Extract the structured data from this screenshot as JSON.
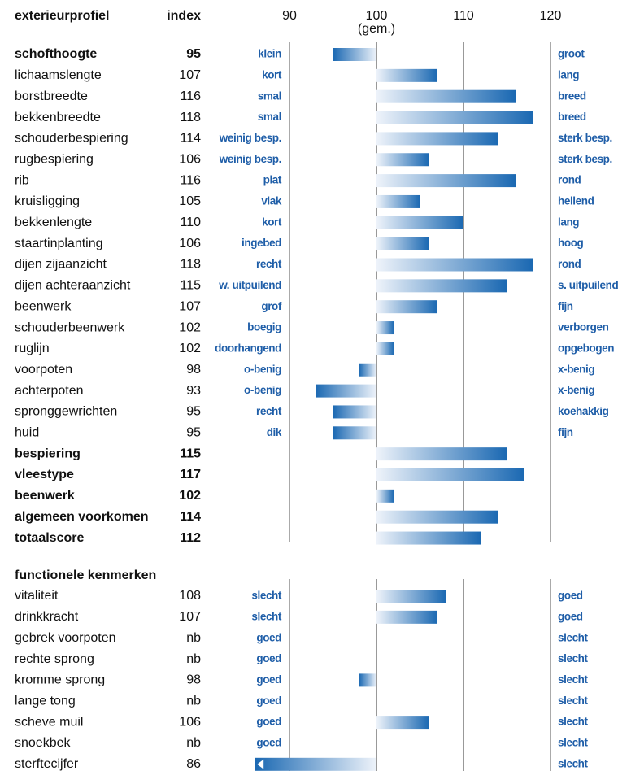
{
  "chart_data": [
    {
      "type": "bar",
      "orientation": "horizontal",
      "title": "exterieurprofiel",
      "index_label": "index",
      "xlim": [
        90,
        120
      ],
      "xticks": [
        90,
        100,
        110,
        120
      ],
      "tick_labels": true,
      "x_axis_note": "(gem.)",
      "baseline": 100,
      "color": "#1a68b2",
      "bold_rows": [
        0,
        19,
        20,
        21,
        22,
        23
      ],
      "categories": [
        "schofthoogte",
        "lichaamslengte",
        "borstbreedte",
        "bekkenbreedte",
        "schouderbespiering",
        "rugbespiering",
        "rib",
        "kruisligging",
        "bekkenlengte",
        "staartinplanting",
        "dijen zijaanzicht",
        "dijen achteraanzicht",
        "beenwerk",
        "schouderbeenwerk",
        "ruglijn",
        "voorpoten",
        "achterpoten",
        "spronggewrichten",
        "huid",
        "bespiering",
        "vleestype",
        "beenwerk",
        "algemeen voorkomen",
        "totaalscore"
      ],
      "values": [
        95,
        107,
        116,
        118,
        114,
        106,
        116,
        105,
        110,
        106,
        118,
        115,
        107,
        102,
        102,
        98,
        93,
        95,
        95,
        115,
        117,
        102,
        114,
        112
      ],
      "low_labels": [
        "klein",
        "kort",
        "smal",
        "smal",
        "weinig besp.",
        "weinig besp.",
        "plat",
        "vlak",
        "kort",
        "ingebed",
        "recht",
        "w. uitpuilend",
        "grof",
        "boegig",
        "doorhangend",
        "o-benig",
        "o-benig",
        "recht",
        "dik",
        null,
        null,
        null,
        null,
        null
      ],
      "high_labels": [
        "groot",
        "lang",
        "breed",
        "breed",
        "sterk besp.",
        "sterk besp.",
        "rond",
        "hellend",
        "lang",
        "hoog",
        "rond",
        "s. uitpuilend",
        "fijn",
        "verborgen",
        "opgebogen",
        "x-benig",
        "x-benig",
        "koehakkig",
        "fijn",
        null,
        null,
        null,
        null,
        null
      ]
    },
    {
      "type": "bar",
      "orientation": "horizontal",
      "title": "functionele kenmerken",
      "xlim": [
        90,
        120
      ],
      "xticks": [
        90,
        100,
        110,
        120
      ],
      "tick_labels": false,
      "baseline": 100,
      "color": "#1a68b2",
      "bold_rows": [],
      "categories": [
        "vitaliteit",
        "drinkkracht",
        "gebrek voorpoten",
        "rechte sprong",
        "kromme sprong",
        "lange tong",
        "scheve muil",
        "snoekbek",
        "sterftecijfer"
      ],
      "values": [
        108,
        107,
        null,
        null,
        98,
        null,
        106,
        null,
        86
      ],
      "value_labels": [
        "108",
        "107",
        "nb",
        "nb",
        "98",
        "nb",
        "106",
        "nb",
        "86"
      ],
      "low_labels": [
        "slecht",
        "slecht",
        "goed",
        "goed",
        "goed",
        "goed",
        "goed",
        "goed",
        "goed"
      ],
      "high_labels": [
        "goed",
        "goed",
        "slecht",
        "slecht",
        "slecht",
        "slecht",
        "slecht",
        "slecht",
        "slecht"
      ]
    }
  ]
}
